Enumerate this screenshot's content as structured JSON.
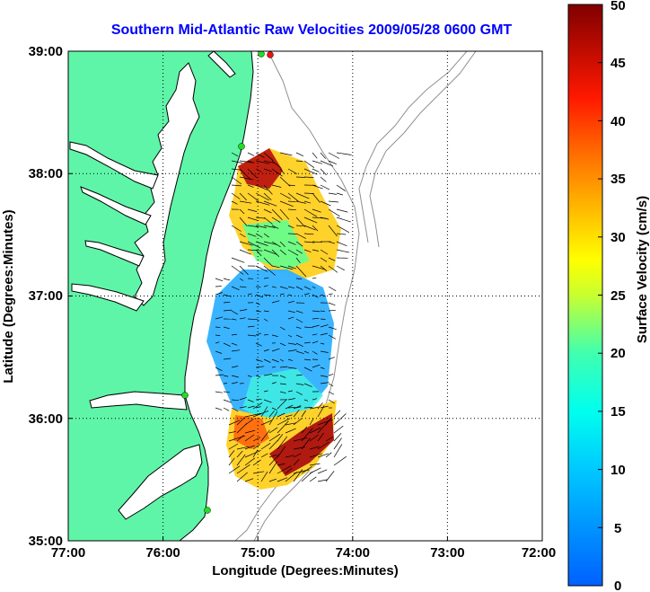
{
  "title": "Southern Mid-Atlantic Raw Velocities 2009/05/28 0600 GMT",
  "x_axis": {
    "label": "Longitude (Degrees:Minutes)",
    "ticks": [
      "77:00",
      "76:00",
      "75:00",
      "74:00",
      "73:00",
      "72:00"
    ]
  },
  "y_axis": {
    "label": "Latitude (Degrees:Minutes)",
    "ticks": [
      "39:00",
      "38:00",
      "37:00",
      "36:00",
      "35:00"
    ]
  },
  "colorbar": {
    "label": "Surface Velocity (cm/s)",
    "ticks": [
      "50",
      "45",
      "40",
      "35",
      "30",
      "25",
      "20",
      "15",
      "10",
      "5",
      "0"
    ],
    "min": 0,
    "max": 50
  },
  "colors": {
    "land": "#5ff5a8",
    "title": "#0000ff",
    "ocean": "#ffffff",
    "bathymetry": "#909090",
    "station": "#22dd22",
    "station_alert": "#ee1111"
  },
  "map_extent": {
    "lon": [
      -77,
      -72
    ],
    "lat": [
      35,
      39
    ]
  },
  "grid": "dotted"
}
